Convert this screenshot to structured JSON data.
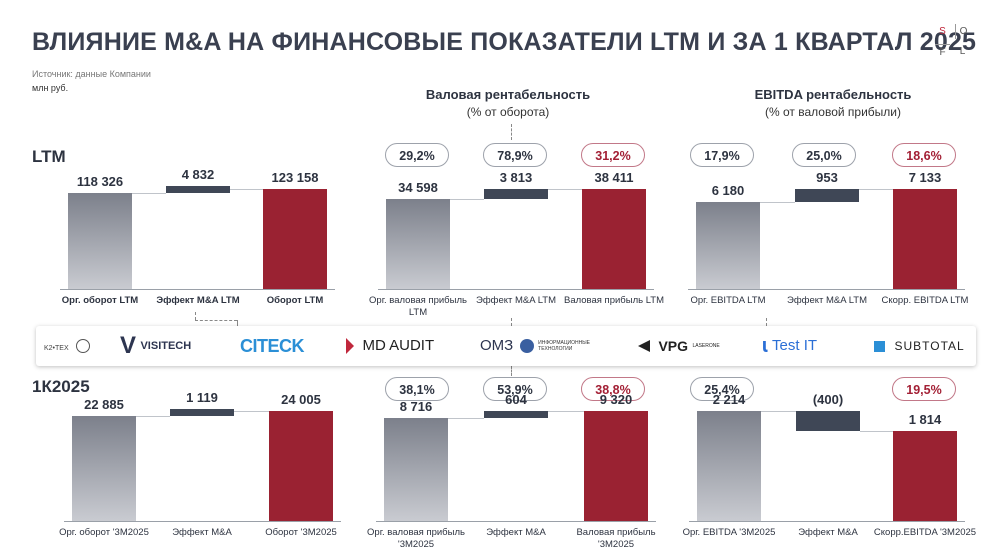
{
  "title": "ВЛИЯНИЕ M&A НА ФИНАНСОВЫЕ ПОКАЗАТЕЛИ LTM И ЗА 1 КВАРТАЛ 2025",
  "source": "Источник: данные Компании",
  "units": "млн руб.",
  "logo": {
    "letters": [
      "S",
      "O",
      "F",
      "L"
    ]
  },
  "headers": {
    "gross": {
      "title": "Валовая рентабельность",
      "subtitle": "(% от оборота)"
    },
    "ebitda": {
      "title": "EBITDA рентабельность",
      "subtitle": "(% от валовой прибыли)"
    }
  },
  "sections": {
    "ltm": "LTM",
    "q1": "1К2025"
  },
  "pills": {
    "ltm": [
      "29,2%",
      "78,9%",
      "31,2%",
      "17,9%",
      "25,0%",
      "18,6%"
    ],
    "q1": [
      "38,1%",
      "53,9%",
      "38,8%",
      "25,4%",
      "",
      "19,5%"
    ]
  },
  "companies": [
    {
      "name": "k2-tech",
      "label": "K2•ТЕХ"
    },
    {
      "name": "visitech",
      "label": "VISITECH"
    },
    {
      "name": "citeck",
      "label": "CITECK"
    },
    {
      "name": "md-audit",
      "label": "MD AUDIT"
    },
    {
      "name": "omz",
      "label": "ОМЗ",
      "sub": "ИНФОРМАЦИОННЫЕ ТЕХНОЛОГИИ"
    },
    {
      "name": "vpg",
      "label": "VPG",
      "sub": "LASERONE"
    },
    {
      "name": "test-it",
      "label": "Test IT"
    },
    {
      "name": "subtotal",
      "label": "SUBTOTAL"
    }
  ],
  "colors": {
    "organic": "#7c808b",
    "effect": "#3f4756",
    "total": "#9a2232",
    "accent": "#a32035"
  },
  "chart_data": [
    {
      "type": "bar",
      "id": "ltm-revenue",
      "categories": [
        "Орг. оборот LTM",
        "Эффект M&A LTM",
        "Оборот LTM"
      ],
      "values": [
        118326,
        4832,
        123158
      ],
      "labels": [
        "118 326",
        "4 832",
        "123 158"
      ],
      "kinds": [
        "base",
        "delta",
        "total"
      ]
    },
    {
      "type": "bar",
      "id": "ltm-gross",
      "categories": [
        "Орг. валовая прибыль LTM",
        "Эффект M&A LTM",
        "Валовая прибыль LTM"
      ],
      "values": [
        34598,
        3813,
        38411
      ],
      "labels": [
        "34 598",
        "3 813",
        "38 411"
      ],
      "kinds": [
        "base",
        "delta",
        "total"
      ]
    },
    {
      "type": "bar",
      "id": "ltm-ebitda",
      "categories": [
        "Орг. EBITDA LTM",
        "Эффект M&A LTM",
        "Скорр. EBITDA LTM"
      ],
      "values": [
        6180,
        953,
        7133
      ],
      "labels": [
        "6 180",
        "953",
        "7 133"
      ],
      "kinds": [
        "base",
        "delta",
        "total"
      ]
    },
    {
      "type": "bar",
      "id": "q1-revenue",
      "categories": [
        "Орг. оборот '3М2025",
        "Эффект M&A",
        "Оборот '3М2025"
      ],
      "values": [
        22885,
        1119,
        24005
      ],
      "labels": [
        "22 885",
        "1 119",
        "24 005"
      ],
      "kinds": [
        "base",
        "delta",
        "total"
      ]
    },
    {
      "type": "bar",
      "id": "q1-gross",
      "categories": [
        "Орг. валовая прибыль '3М2025",
        "Эффект M&A",
        "Валовая прибыль '3М2025"
      ],
      "values": [
        8716,
        604,
        9320
      ],
      "labels": [
        "8 716",
        "604",
        "9 320"
      ],
      "kinds": [
        "base",
        "delta",
        "total"
      ]
    },
    {
      "type": "bar",
      "id": "q1-ebitda",
      "categories": [
        "Орг. EBITDA '3М2025",
        "Эффект M&A",
        "Скорр.EBITDA '3М2025"
      ],
      "values": [
        2214,
        -400,
        1814
      ],
      "labels": [
        "2 214",
        "(400)",
        "1 814"
      ],
      "kinds": [
        "base",
        "delta",
        "total"
      ]
    }
  ]
}
